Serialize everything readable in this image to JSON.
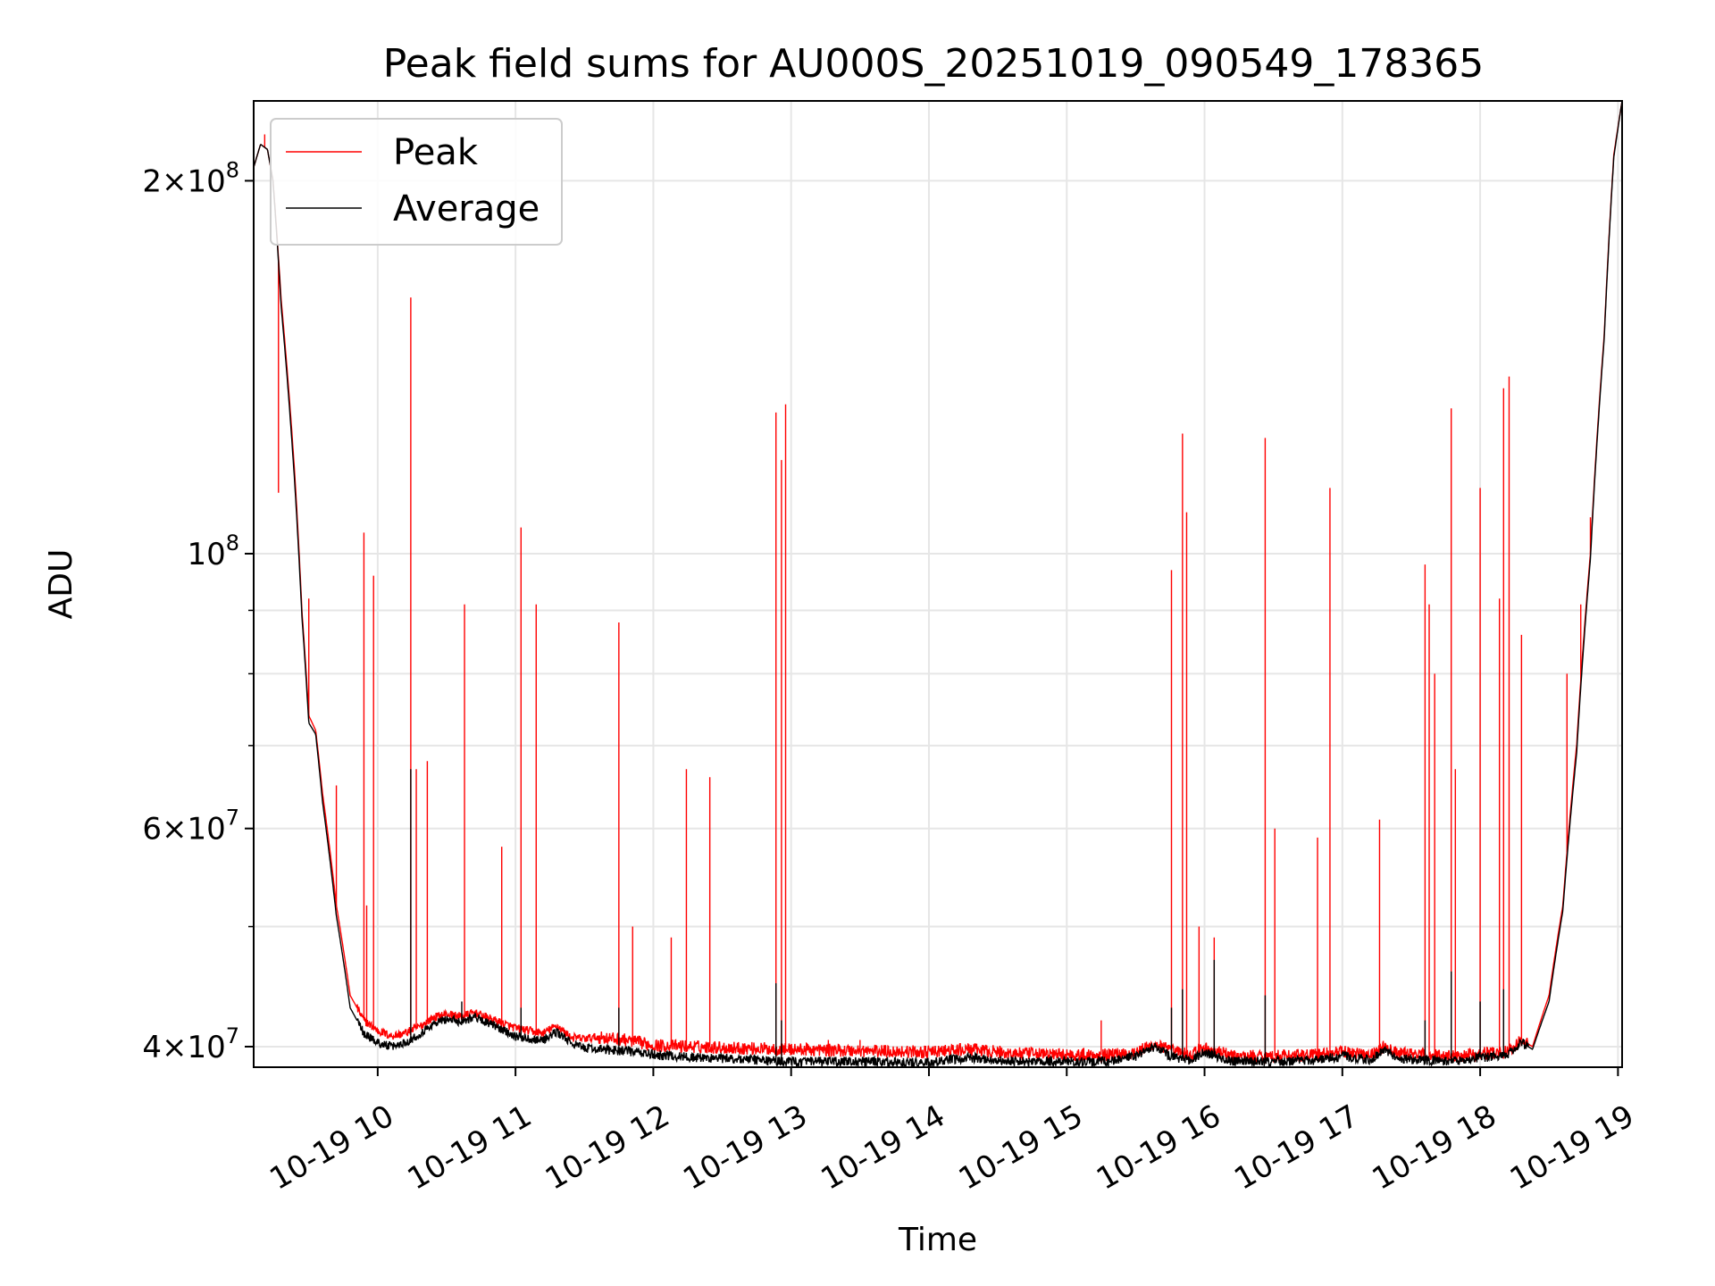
{
  "chart_data": {
    "type": "line",
    "title": "Peak field sums for AU000S_20251019_090549_178365",
    "xlabel": "Time",
    "ylabel": "ADU",
    "xlim": [
      9.1,
      19.03
    ],
    "ylim": [
      38500000,
      232000000
    ],
    "yscale": "log",
    "grid": true,
    "legend_position": "top-left",
    "x_ticks": [
      {
        "value": 10,
        "label": "10-19 10"
      },
      {
        "value": 11,
        "label": "10-19 11"
      },
      {
        "value": 12,
        "label": "10-19 12"
      },
      {
        "value": 13,
        "label": "10-19 13"
      },
      {
        "value": 14,
        "label": "10-19 14"
      },
      {
        "value": 15,
        "label": "10-19 15"
      },
      {
        "value": 16,
        "label": "10-19 16"
      },
      {
        "value": 17,
        "label": "10-19 17"
      },
      {
        "value": 18,
        "label": "10-19 18"
      },
      {
        "value": 19,
        "label": "10-19 19"
      }
    ],
    "y_major_ticks": [
      {
        "value": 40000000,
        "mantissa": "4",
        "exponent": "7"
      },
      {
        "value": 60000000,
        "mantissa": "6",
        "exponent": "7"
      },
      {
        "value": 100000000,
        "mantissa": "10",
        "exponent": "8"
      },
      {
        "value": 200000000,
        "mantissa": "2",
        "exponent": "8"
      }
    ],
    "y_minor_gridlines": [
      50000000,
      70000000,
      80000000,
      90000000
    ],
    "series": [
      {
        "name": "Peak",
        "color": "#ff0000",
        "baseline": [
          [
            9.1,
            205000000
          ],
          [
            9.15,
            214000000
          ],
          [
            9.2,
            212000000
          ],
          [
            9.24,
            200000000
          ],
          [
            9.3,
            160000000
          ],
          [
            9.4,
            115000000
          ],
          [
            9.45,
            90000000
          ],
          [
            9.5,
            74000000
          ],
          [
            9.55,
            72000000
          ],
          [
            9.6,
            64000000
          ],
          [
            9.7,
            52000000
          ],
          [
            9.8,
            44000000
          ],
          [
            9.9,
            42000000
          ],
          [
            10.0,
            41200000
          ],
          [
            10.1,
            40800000
          ],
          [
            10.2,
            41000000
          ],
          [
            10.3,
            41500000
          ],
          [
            10.4,
            42200000
          ],
          [
            10.5,
            42500000
          ],
          [
            10.6,
            42300000
          ],
          [
            10.7,
            42600000
          ],
          [
            10.8,
            42200000
          ],
          [
            10.9,
            41800000
          ],
          [
            11.0,
            41400000
          ],
          [
            11.1,
            41200000
          ],
          [
            11.2,
            41000000
          ],
          [
            11.3,
            41600000
          ],
          [
            11.4,
            40700000
          ],
          [
            11.5,
            40600000
          ],
          [
            11.6,
            40700000
          ],
          [
            11.8,
            40500000
          ],
          [
            12.0,
            40100000
          ],
          [
            12.3,
            40000000
          ],
          [
            12.6,
            39900000
          ],
          [
            13.0,
            39800000
          ],
          [
            13.5,
            39700000
          ],
          [
            14.0,
            39600000
          ],
          [
            14.3,
            39800000
          ],
          [
            14.6,
            39500000
          ],
          [
            15.0,
            39400000
          ],
          [
            15.3,
            39400000
          ],
          [
            15.5,
            39600000
          ],
          [
            15.65,
            40200000
          ],
          [
            15.75,
            39700000
          ],
          [
            15.9,
            39400000
          ],
          [
            16.0,
            39900000
          ],
          [
            16.1,
            39600000
          ],
          [
            16.2,
            39300000
          ],
          [
            16.5,
            39300000
          ],
          [
            16.8,
            39400000
          ],
          [
            17.0,
            39600000
          ],
          [
            17.2,
            39400000
          ],
          [
            17.3,
            40000000
          ],
          [
            17.4,
            39500000
          ],
          [
            17.6,
            39400000
          ],
          [
            17.8,
            39300000
          ],
          [
            18.0,
            39500000
          ],
          [
            18.2,
            39600000
          ],
          [
            18.3,
            40500000
          ],
          [
            18.38,
            40000000
          ],
          [
            18.5,
            44000000
          ],
          [
            18.6,
            52000000
          ],
          [
            18.7,
            70000000
          ],
          [
            18.8,
            100000000
          ],
          [
            18.9,
            150000000
          ],
          [
            18.97,
            210000000
          ],
          [
            19.03,
            232000000
          ]
        ],
        "spikes": [
          [
            9.18,
            218000000
          ],
          [
            9.28,
            112000000
          ],
          [
            9.5,
            92000000
          ],
          [
            9.7,
            65000000
          ],
          [
            9.9,
            104000000
          ],
          [
            9.92,
            52000000
          ],
          [
            9.97,
            96000000
          ],
          [
            10.24,
            161000000
          ],
          [
            10.28,
            67000000
          ],
          [
            10.36,
            68000000
          ],
          [
            10.63,
            91000000
          ],
          [
            10.9,
            58000000
          ],
          [
            11.04,
            105000000
          ],
          [
            11.15,
            91000000
          ],
          [
            11.75,
            88000000
          ],
          [
            11.85,
            50000000
          ],
          [
            12.13,
            49000000
          ],
          [
            12.24,
            67000000
          ],
          [
            12.41,
            66000000
          ],
          [
            12.89,
            130000000
          ],
          [
            12.93,
            119000000
          ],
          [
            12.96,
            132000000
          ],
          [
            13.27,
            40500000
          ],
          [
            13.5,
            40500000
          ],
          [
            15.25,
            42000000
          ],
          [
            15.76,
            97000000
          ],
          [
            15.84,
            125000000
          ],
          [
            15.87,
            108000000
          ],
          [
            15.96,
            50000000
          ],
          [
            16.07,
            49000000
          ],
          [
            16.44,
            124000000
          ],
          [
            16.51,
            60000000
          ],
          [
            16.82,
            59000000
          ],
          [
            16.91,
            113000000
          ],
          [
            17.27,
            61000000
          ],
          [
            17.6,
            98000000
          ],
          [
            17.63,
            91000000
          ],
          [
            17.67,
            80000000
          ],
          [
            17.79,
            131000000
          ],
          [
            17.82,
            67000000
          ],
          [
            18.0,
            113000000
          ],
          [
            18.14,
            92000000
          ],
          [
            18.17,
            136000000
          ],
          [
            18.21,
            139000000
          ],
          [
            18.3,
            86000000
          ],
          [
            18.63,
            80000000
          ],
          [
            18.73,
            91000000
          ],
          [
            18.8,
            107000000
          ]
        ]
      },
      {
        "name": "Average",
        "color": "#000000",
        "baseline": [
          [
            9.1,
            205000000
          ],
          [
            9.15,
            214000000
          ],
          [
            9.2,
            212000000
          ],
          [
            9.24,
            200000000
          ],
          [
            9.3,
            158000000
          ],
          [
            9.4,
            113000000
          ],
          [
            9.45,
            89000000
          ],
          [
            9.5,
            73000000
          ],
          [
            9.55,
            71500000
          ],
          [
            9.6,
            63000000
          ],
          [
            9.7,
            51000000
          ],
          [
            9.8,
            43000000
          ],
          [
            9.9,
            41000000
          ],
          [
            10.0,
            40300000
          ],
          [
            10.1,
            40000000
          ],
          [
            10.2,
            40300000
          ],
          [
            10.3,
            40900000
          ],
          [
            10.4,
            41700000
          ],
          [
            10.5,
            42100000
          ],
          [
            10.6,
            41900000
          ],
          [
            10.7,
            42300000
          ],
          [
            10.8,
            41800000
          ],
          [
            10.9,
            41300000
          ],
          [
            11.0,
            40800000
          ],
          [
            11.1,
            40600000
          ],
          [
            11.2,
            40500000
          ],
          [
            11.3,
            41100000
          ],
          [
            11.4,
            40300000
          ],
          [
            11.5,
            39900000
          ],
          [
            11.6,
            39800000
          ],
          [
            11.8,
            39700000
          ],
          [
            12.0,
            39400000
          ],
          [
            12.3,
            39200000
          ],
          [
            12.6,
            39100000
          ],
          [
            13.0,
            38900000
          ],
          [
            13.5,
            38900000
          ],
          [
            14.0,
            38800000
          ],
          [
            14.3,
            39200000
          ],
          [
            14.6,
            38900000
          ],
          [
            15.0,
            38900000
          ],
          [
            15.3,
            38900000
          ],
          [
            15.5,
            39300000
          ],
          [
            15.65,
            40000000
          ],
          [
            15.75,
            39300000
          ],
          [
            15.9,
            39000000
          ],
          [
            16.0,
            39600000
          ],
          [
            16.1,
            39200000
          ],
          [
            16.2,
            38900000
          ],
          [
            16.5,
            38900000
          ],
          [
            16.8,
            39000000
          ],
          [
            17.0,
            39300000
          ],
          [
            17.2,
            39000000
          ],
          [
            17.3,
            39800000
          ],
          [
            17.4,
            39100000
          ],
          [
            17.6,
            39000000
          ],
          [
            17.8,
            38900000
          ],
          [
            18.0,
            39200000
          ],
          [
            18.2,
            39300000
          ],
          [
            18.3,
            40300000
          ],
          [
            18.38,
            39800000
          ],
          [
            18.5,
            43500000
          ],
          [
            18.6,
            51500000
          ],
          [
            18.7,
            69000000
          ],
          [
            18.8,
            99000000
          ],
          [
            18.9,
            149000000
          ],
          [
            18.97,
            209000000
          ],
          [
            19.03,
            232000000
          ]
        ],
        "spikes": [
          [
            10.24,
            67000000
          ],
          [
            10.61,
            43500000
          ],
          [
            11.04,
            43000000
          ],
          [
            11.75,
            43000000
          ],
          [
            12.89,
            45000000
          ],
          [
            12.93,
            42000000
          ],
          [
            15.76,
            43000000
          ],
          [
            15.84,
            44500000
          ],
          [
            16.07,
            47000000
          ],
          [
            16.44,
            44000000
          ],
          [
            17.6,
            42000000
          ],
          [
            17.79,
            46000000
          ],
          [
            18.0,
            43500000
          ],
          [
            18.17,
            44500000
          ]
        ]
      }
    ]
  }
}
